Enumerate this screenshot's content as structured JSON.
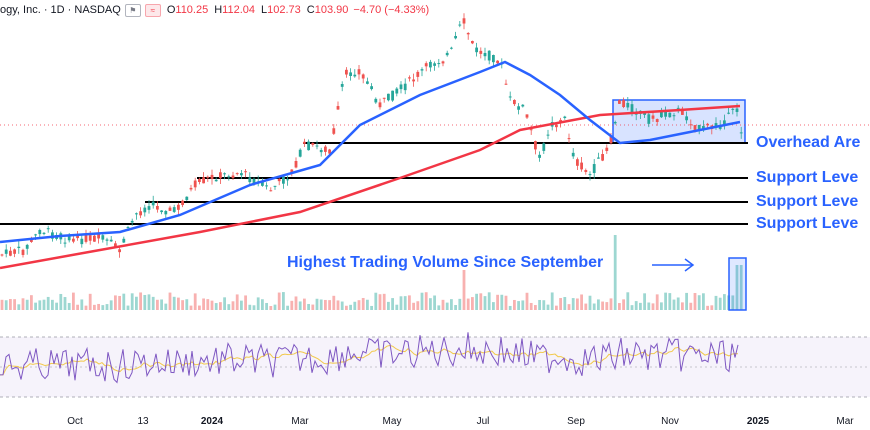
{
  "header": {
    "symbol_text": "ogy, Inc. · 1D · NASDAQ",
    "open_label": "O",
    "open": "110.25",
    "high_label": "H",
    "high": "112.04",
    "low_label": "L",
    "low": "102.73",
    "close_label": "C",
    "close": "103.90",
    "change": "−4.70 (−4.33%)",
    "btn1_icon": "flag-icon",
    "btn2_icon": "wave-icon"
  },
  "annotations": {
    "overhead": "Overhead Are",
    "support1": "Support Leve",
    "support2": "Support Leve",
    "support3": "Support Leve",
    "volume_note": "Highest Trading Volume Since September",
    "arrow_icon": "right-arrow-icon"
  },
  "x_axis_labels": [
    {
      "text": "Oct",
      "bold": false
    },
    {
      "text": "13",
      "bold": false
    },
    {
      "text": "2024",
      "bold": true
    },
    {
      "text": "Mar",
      "bold": false
    },
    {
      "text": "May",
      "bold": false
    },
    {
      "text": "Jul",
      "bold": false
    },
    {
      "text": "Sep",
      "bold": false
    },
    {
      "text": "Nov",
      "bold": false
    },
    {
      "text": "2025",
      "bold": true
    },
    {
      "text": "Mar",
      "bold": false
    }
  ],
  "colors": {
    "up": "#26a69a",
    "down": "#ef5350",
    "ma50": "#2962ff",
    "ma200": "#f23645",
    "annotation": "#2962ff",
    "rsi": "#7e57c2",
    "rsi_ma": "#f2c94c"
  },
  "chart_data": {
    "type": "line",
    "title": "",
    "series": [
      {
        "name": "",
        "x": [
          "Oct",
          "13",
          "2024",
          "Mar",
          "May",
          "Jul",
          "Sep",
          "Nov",
          "2025"
        ],
        "values": [
          38,
          42,
          55,
          72,
          90,
          124,
          70,
          92,
          104
        ]
      }
    ],
    "ohlc_last": {
      "open": 110.25,
      "high": 112.04,
      "low": 102.73,
      "close": 103.9,
      "change": -4.7,
      "change_pct": -4.33
    },
    "horizontal_levels": [
      "Overhead Area",
      "Support Level",
      "Support Level",
      "Support Level"
    ],
    "panes": [
      "price",
      "volume",
      "rsi"
    ],
    "grid": false
  }
}
